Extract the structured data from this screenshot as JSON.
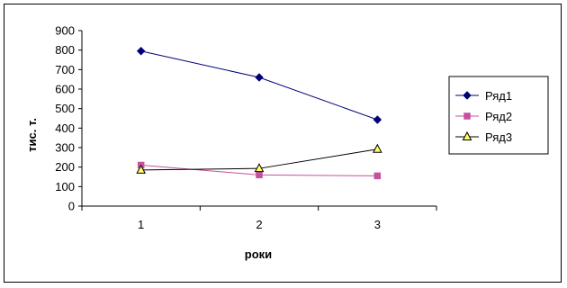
{
  "chart_data": {
    "type": "line",
    "title": "",
    "xlabel": "роки",
    "ylabel": "тис. т.",
    "categories": [
      "1",
      "2",
      "3"
    ],
    "ylim": [
      0,
      900
    ],
    "yticks": [
      "0",
      "100",
      "200",
      "300",
      "400",
      "500",
      "600",
      "700",
      "800",
      "900"
    ],
    "grid": false,
    "legend": "right",
    "series": [
      {
        "name": "Ряд1",
        "values": [
          795,
          660,
          443
        ],
        "color": "#00007a",
        "marker": "diamond"
      },
      {
        "name": "Ряд2",
        "values": [
          210,
          160,
          155
        ],
        "color": "#c4509e",
        "marker": "square"
      },
      {
        "name": "Ряд3",
        "values": [
          185,
          193,
          292
        ],
        "color": "#000000",
        "marker": "triangle",
        "marker_fill": "#ffff66"
      }
    ]
  }
}
